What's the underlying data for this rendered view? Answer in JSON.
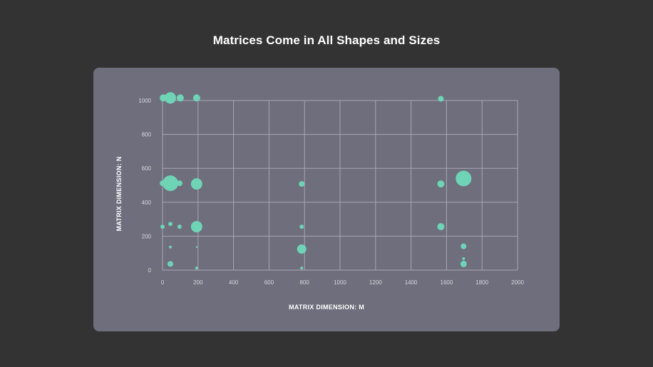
{
  "colors": {
    "background": "#333333",
    "panel": "#6e6e7c",
    "grid": "#a6a6b4",
    "bubble": "#6fd3b6",
    "tick_text": "#d9d9e0",
    "title_text": "#ffffff"
  },
  "chart_data": {
    "type": "scatter",
    "title": "Matrices Come in All Shapes and Sizes",
    "xlabel": "MATRIX DIMENSION: M",
    "ylabel": "MATRIX DIMENSION: N",
    "xlim": [
      0,
      2000
    ],
    "ylim": [
      0,
      1000
    ],
    "xticks": [
      "0",
      "200",
      "400",
      "600",
      "800",
      "1000",
      "1200",
      "1400",
      "1600",
      "1800",
      "2000"
    ],
    "yticks": [
      "0",
      "200",
      "400",
      "600",
      "800",
      "1000"
    ],
    "grid": true,
    "legend": "none",
    "bubble_size_note": "size encodes relative frequency (unlabeled)",
    "points": [
      {
        "m": 4,
        "n": 1015,
        "size": 5
      },
      {
        "m": 44,
        "n": 1015,
        "size": 8
      },
      {
        "m": 100,
        "n": 1015,
        "size": 5
      },
      {
        "m": 192,
        "n": 1015,
        "size": 5
      },
      {
        "m": 1568,
        "n": 1010,
        "size": 4
      },
      {
        "m": 0,
        "n": 512,
        "size": 4
      },
      {
        "m": 44,
        "n": 512,
        "size": 11
      },
      {
        "m": 96,
        "n": 512,
        "size": 4
      },
      {
        "m": 192,
        "n": 508,
        "size": 8
      },
      {
        "m": 784,
        "n": 508,
        "size": 4
      },
      {
        "m": 1568,
        "n": 508,
        "size": 5
      },
      {
        "m": 1696,
        "n": 540,
        "size": 11
      },
      {
        "m": 0,
        "n": 256,
        "size": 3
      },
      {
        "m": 44,
        "n": 272,
        "size": 3
      },
      {
        "m": 96,
        "n": 256,
        "size": 3
      },
      {
        "m": 192,
        "n": 256,
        "size": 8
      },
      {
        "m": 784,
        "n": 256,
        "size": 3
      },
      {
        "m": 1568,
        "n": 256,
        "size": 5
      },
      {
        "m": 44,
        "n": 136,
        "size": 2
      },
      {
        "m": 192,
        "n": 136,
        "size": 1.2
      },
      {
        "m": 784,
        "n": 124,
        "size": 6.5
      },
      {
        "m": 1696,
        "n": 140,
        "size": 4
      },
      {
        "m": 1696,
        "n": 68,
        "size": 2
      },
      {
        "m": 44,
        "n": 36,
        "size": 4
      },
      {
        "m": 192,
        "n": 12,
        "size": 2
      },
      {
        "m": 784,
        "n": 12,
        "size": 2
      },
      {
        "m": 1696,
        "n": 36,
        "size": 4.5
      }
    ]
  }
}
